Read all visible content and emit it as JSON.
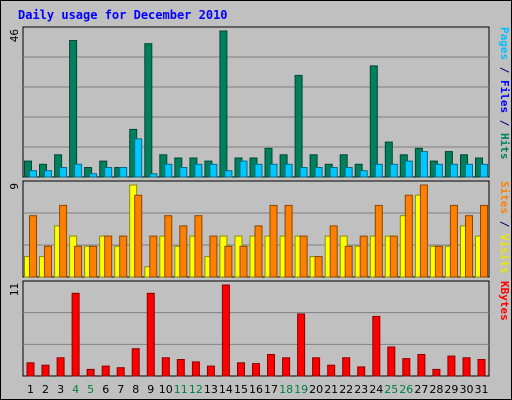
{
  "chart_data": {
    "type": "bar",
    "title": "Daily usage for December 2010",
    "days": [
      "1",
      "2",
      "3",
      "4",
      "5",
      "6",
      "7",
      "8",
      "9",
      "10",
      "11",
      "12",
      "13",
      "14",
      "15",
      "16",
      "17",
      "18",
      "19",
      "20",
      "21",
      "22",
      "23",
      "24",
      "25",
      "26",
      "27",
      "28",
      "29",
      "30",
      "31"
    ],
    "weekend_days": [
      "4",
      "5",
      "11",
      "12",
      "18",
      "19",
      "25",
      "26"
    ],
    "panels": [
      {
        "id": "hits",
        "scale_label": "46",
        "ymax": 46,
        "side_labels": [
          {
            "text": "Pages",
            "color": "#00c0ff"
          },
          {
            "text": " / ",
            "color": "#000080"
          },
          {
            "text": "Files",
            "color": "#0000ff"
          },
          {
            "text": " / ",
            "color": "#000080"
          },
          {
            "text": "Hits",
            "color": "#008060"
          }
        ],
        "series": [
          {
            "name": "Hits",
            "color": "#00805c",
            "values": [
              5,
              4,
              7,
              43,
              3,
              5,
              3,
              15,
              42,
              7,
              6,
              6,
              5,
              46,
              6,
              6,
              9,
              7,
              32,
              7,
              4,
              7,
              4,
              35,
              11,
              7,
              9,
              5,
              8,
              7,
              6
            ]
          },
          {
            "name": "Files",
            "color": "#00c8ff",
            "values": [
              2,
              2,
              3,
              4,
              1,
              3,
              3,
              12,
              1,
              4,
              3,
              4,
              4,
              2,
              5,
              4,
              4,
              4,
              3,
              3,
              3,
              3,
              2,
              4,
              4,
              5,
              8,
              4,
              4,
              4,
              4
            ]
          }
        ]
      },
      {
        "id": "visits",
        "scale_label": "9",
        "ymax": 9,
        "side_labels": [
          {
            "text": "Sites",
            "color": "#ff8000"
          },
          {
            "text": " / ",
            "color": "#000080"
          },
          {
            "text": "Visits",
            "color": "#e8e800"
          }
        ],
        "series": [
          {
            "name": "Visits",
            "color": "#ffff00",
            "values": [
              2,
              2,
              5,
              4,
              3,
              4,
              3,
              9,
              1,
              4,
              3,
              4,
              2,
              4,
              4,
              4,
              4,
              4,
              4,
              2,
              4,
              4,
              3,
              4,
              4,
              6,
              8,
              3,
              3,
              5,
              4
            ]
          },
          {
            "name": "Sites",
            "color": "#ff8000",
            "values": [
              6,
              3,
              7,
              3,
              3,
              4,
              4,
              8,
              4,
              6,
              5,
              6,
              4,
              3,
              3,
              5,
              7,
              7,
              4,
              2,
              5,
              3,
              4,
              7,
              4,
              8,
              9,
              3,
              7,
              6,
              7
            ]
          }
        ]
      },
      {
        "id": "kbytes",
        "scale_label": "11",
        "ymax": 11,
        "side_labels": [
          {
            "text": "KBytes",
            "color": "#ff0000"
          }
        ],
        "series": [
          {
            "name": "KBytes",
            "color": "#ff0000",
            "values": [
              1.6,
              1.3,
              2.2,
              10,
              0.8,
              1.2,
              1.0,
              3.3,
              10,
              2.2,
              2.0,
              1.7,
              1.2,
              11,
              1.6,
              1.5,
              2.6,
              2.2,
              7.5,
              2.2,
              1.3,
              2.2,
              1.1,
              7.2,
              3.5,
              2.1,
              2.6,
              0.8,
              2.4,
              2.2,
              2.0
            ]
          }
        ]
      }
    ]
  }
}
